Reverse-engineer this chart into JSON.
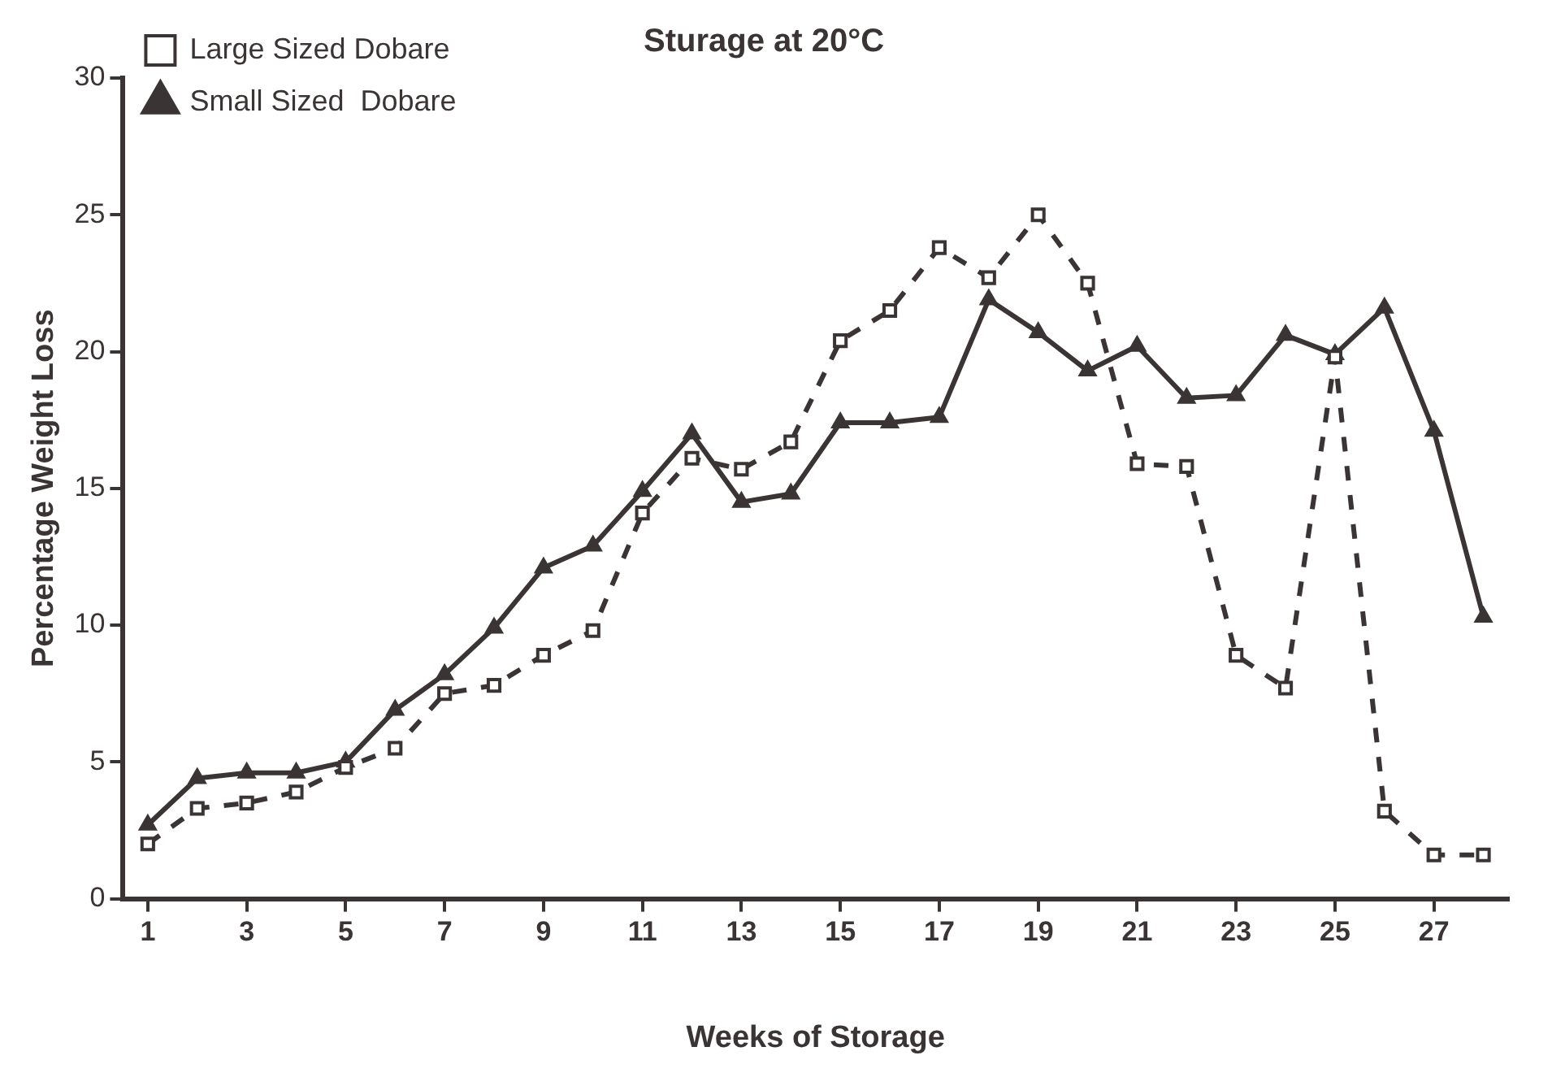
{
  "chart_data": {
    "type": "line",
    "title": "Sturage at 20°C",
    "xlabel": "Weeks of Storage",
    "ylabel": "Percentage Weight Loss",
    "x": [
      1,
      2,
      3,
      4,
      5,
      6,
      7,
      8,
      9,
      10,
      11,
      12,
      13,
      14,
      15,
      16,
      17,
      18,
      19,
      20,
      21,
      22,
      23,
      24,
      25,
      26,
      27,
      28
    ],
    "series": [
      {
        "name": "Large Sized Dobare",
        "color": "#3a3534",
        "marker": "square",
        "line_style": "dashed",
        "values": [
          2.0,
          3.3,
          3.5,
          3.9,
          4.8,
          5.5,
          7.5,
          7.8,
          8.9,
          9.8,
          14.1,
          16.1,
          15.7,
          16.7,
          20.4,
          21.5,
          23.8,
          22.7,
          25.0,
          22.5,
          15.9,
          15.8,
          8.9,
          7.7,
          19.8,
          3.2,
          1.6,
          1.6
        ]
      },
      {
        "name": "Small Sized  Dobare",
        "color": "#3a3534",
        "marker": "triangle",
        "line_style": "solid",
        "values": [
          2.7,
          4.4,
          4.6,
          4.6,
          5.0,
          6.9,
          8.2,
          9.9,
          12.1,
          12.9,
          14.9,
          17.0,
          14.5,
          14.8,
          17.4,
          17.4,
          17.6,
          21.9,
          20.7,
          19.3,
          20.2,
          18.3,
          18.4,
          20.6,
          19.9,
          21.6,
          17.1,
          10.3
        ]
      }
    ],
    "xlim": [
      0.5,
      28.5
    ],
    "xticks": [
      1,
      3,
      5,
      7,
      9,
      11,
      13,
      15,
      17,
      19,
      21,
      23,
      25,
      27
    ],
    "ylim": [
      0,
      30
    ],
    "yticks": [
      0,
      5,
      10,
      15,
      20,
      25,
      30
    ],
    "grid": false,
    "legend": "top left"
  }
}
